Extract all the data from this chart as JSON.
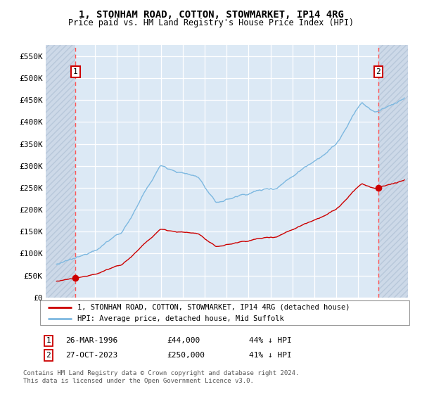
{
  "title": "1, STONHAM ROAD, COTTON, STOWMARKET, IP14 4RG",
  "subtitle": "Price paid vs. HM Land Registry's House Price Index (HPI)",
  "legend_line1": "1, STONHAM ROAD, COTTON, STOWMARKET, IP14 4RG (detached house)",
  "legend_line2": "HPI: Average price, detached house, Mid Suffolk",
  "sale1_date": "26-MAR-1996",
  "sale1_price": "£44,000",
  "sale1_hpi": "44% ↓ HPI",
  "sale2_date": "27-OCT-2023",
  "sale2_price": "£250,000",
  "sale2_hpi": "41% ↓ HPI",
  "footer1": "Contains HM Land Registry data © Crown copyright and database right 2024.",
  "footer2": "This data is licensed under the Open Government Licence v3.0.",
  "bg_color": "#dce9f5",
  "grid_color": "#ffffff",
  "red_line_color": "#cc0000",
  "blue_line_color": "#7db8e0",
  "dashed_line_color": "#ff5555",
  "sale_dot_color": "#cc0000",
  "label_box_color": "#cc0000",
  "ylim": [
    0,
    575000
  ],
  "yticks": [
    0,
    50000,
    100000,
    150000,
    200000,
    250000,
    300000,
    350000,
    400000,
    450000,
    500000,
    550000
  ],
  "ytick_labels": [
    "£0",
    "£50K",
    "£100K",
    "£150K",
    "£200K",
    "£250K",
    "£300K",
    "£350K",
    "£400K",
    "£450K",
    "£500K",
    "£550K"
  ],
  "sale1_x": 1996.23,
  "sale1_y": 44000,
  "sale2_x": 2023.82,
  "sale2_y": 250000,
  "xmin": 1993.5,
  "xmax": 2026.5
}
